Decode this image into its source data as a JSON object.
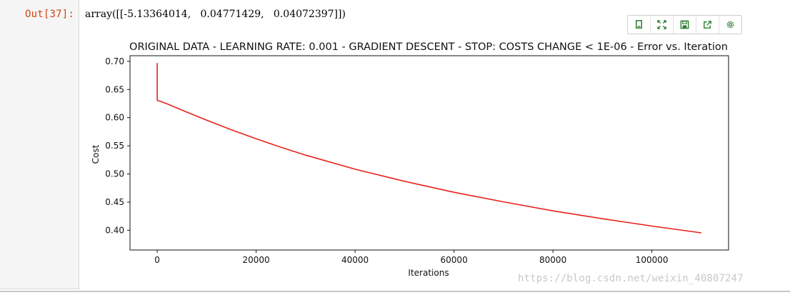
{
  "cell": {
    "prompt": "Out[37]:",
    "output_text": "array([[-5.13364014,   0.04771429,   0.04072397]])"
  },
  "toolbar": {
    "buttons": [
      {
        "name": "copy-image-icon",
        "glyph": "copy"
      },
      {
        "name": "fullscreen-icon",
        "glyph": "expand"
      },
      {
        "name": "save-icon",
        "glyph": "save"
      },
      {
        "name": "share-icon",
        "glyph": "share"
      },
      {
        "name": "settings-icon",
        "glyph": "gear"
      }
    ],
    "color": "#2e7d32"
  },
  "watermark": "https://blog.csdn.net/weixin_40807247",
  "chart_data": {
    "type": "line",
    "title": "ORIGINAL DATA - LEARNING RATE: 0.001 - GRADIENT DESCENT - STOP: COSTS CHANGE < 1E-06 - Error vs. Iteration",
    "xlabel": "Iterations",
    "ylabel": "Cost",
    "xlim": [
      -5500,
      115500
    ],
    "ylim": [
      0.365,
      0.71
    ],
    "xticks": [
      0,
      20000,
      40000,
      60000,
      80000,
      100000
    ],
    "xtick_labels": [
      "0",
      "20000",
      "40000",
      "60000",
      "80000",
      "100000"
    ],
    "yticks": [
      0.4,
      0.45,
      0.5,
      0.55,
      0.6,
      0.65,
      0.7
    ],
    "ytick_labels": [
      "0.40",
      "0.45",
      "0.50",
      "0.55",
      "0.60",
      "0.65",
      "0.70"
    ],
    "grid": false,
    "series": [
      {
        "color": "#e8221b",
        "x": [
          0,
          0,
          0,
          100,
          500,
          2000,
          5000,
          10000,
          15000,
          20000,
          25000,
          30000,
          40000,
          50000,
          60000,
          70000,
          80000,
          90000,
          100000,
          110000
        ],
        "y": [
          0.697,
          0.64,
          0.633,
          0.63,
          0.6295,
          0.6245,
          0.6135,
          0.5955,
          0.5785,
          0.5625,
          0.5475,
          0.5335,
          0.5085,
          0.487,
          0.4675,
          0.4505,
          0.4345,
          0.4205,
          0.4075,
          0.3955
        ]
      }
    ]
  }
}
